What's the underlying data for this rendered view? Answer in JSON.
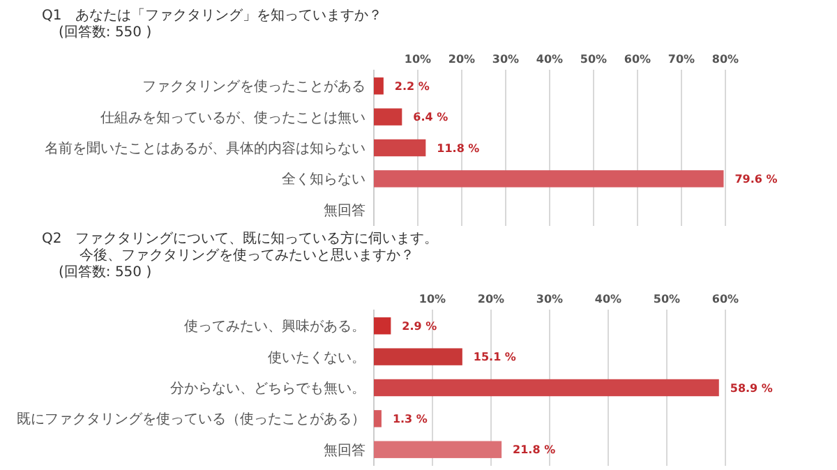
{
  "chart_data": [
    {
      "type": "bar",
      "orientation": "horizontal",
      "title": "Q1　あなたは「ファクタリング」を知っていますか？",
      "subtitle": "(回答数: 550 )",
      "categories": [
        "ファクタリングを使ったことがある",
        "仕組みを知っているが、使ったことは無い",
        "名前を聞いたことはあるが、具体的内容は知らない",
        "全く知らない",
        "無回答"
      ],
      "values": [
        2.2,
        6.4,
        11.8,
        79.6,
        null
      ],
      "value_labels": [
        "2.2 %",
        "6.4 %",
        "11.8 %",
        "79.6 %",
        null
      ],
      "colors": [
        "#cc3333",
        "#cc3a3a",
        "#cf4446",
        "#d65a60",
        null
      ],
      "xlim": [
        0,
        80
      ],
      "xticks": [
        {
          "value": 10,
          "label": "10%"
        },
        {
          "value": 20,
          "label": "20%"
        },
        {
          "value": 30,
          "label": "30%"
        },
        {
          "value": 40,
          "label": "40%"
        },
        {
          "value": 50,
          "label": "50%"
        },
        {
          "value": 60,
          "label": "60%"
        },
        {
          "value": 70,
          "label": "70%"
        },
        {
          "value": 80,
          "label": "80%"
        }
      ],
      "grid": "x"
    },
    {
      "type": "bar",
      "orientation": "horizontal",
      "title": "Q2　ファクタリングについて、既に知っている方に伺います。",
      "subtitle": "今後、ファクタリングを使ってみたいと思いますか？",
      "annotations": [
        "(回答数: 550 )"
      ],
      "categories": [
        "使ってみたい、興味がある。",
        "使いたくない。",
        "分からない、どちらでも無い。",
        "既にファクタリングを使っている（使ったことがある）",
        "無回答"
      ],
      "values": [
        2.9,
        15.1,
        58.9,
        1.3,
        21.8
      ],
      "value_labels": [
        "2.9 %",
        "15.1 %",
        "58.9 %",
        "1.3 %",
        "21.8 %"
      ],
      "colors": [
        "#cc2e2e",
        "#c83838",
        "#cf4548",
        "#d65a5e",
        "#dc7075"
      ],
      "xlim": [
        0,
        60
      ],
      "xticks": [
        {
          "value": 10,
          "label": "10%"
        },
        {
          "value": 20,
          "label": "20%"
        },
        {
          "value": 30,
          "label": "30%"
        },
        {
          "value": 40,
          "label": "40%"
        },
        {
          "value": 50,
          "label": "50%"
        },
        {
          "value": 60,
          "label": "60%"
        }
      ],
      "grid": "x"
    }
  ]
}
